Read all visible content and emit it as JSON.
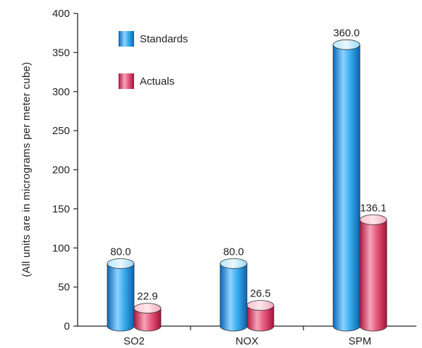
{
  "chart_data": {
    "type": "bar",
    "categories": [
      "SO2",
      "NOX",
      "SPM"
    ],
    "series": [
      {
        "name": "Standards",
        "values": [
          80.0,
          80.0,
          360.0
        ],
        "labels": [
          "80.0",
          "80.0",
          "360.0"
        ],
        "color": "#1f9ee0"
      },
      {
        "name": "Actuals",
        "values": [
          22.9,
          26.5,
          136.1
        ],
        "labels": [
          "22.9",
          "26.5",
          "136.1"
        ],
        "color": "#d62f5a"
      }
    ],
    "xlabel": "",
    "ylabel": "(All units are in micrograms per meter cube)",
    "ylim": [
      0,
      400
    ],
    "yticks": [
      0,
      50,
      100,
      150,
      200,
      250,
      300,
      350,
      400
    ],
    "ytick_labels": [
      "0",
      "50",
      "100",
      "150",
      "200",
      "250",
      "300",
      "350",
      "400"
    ],
    "grid": false,
    "legend_position": "top-left",
    "bar_style": "cylinder"
  }
}
